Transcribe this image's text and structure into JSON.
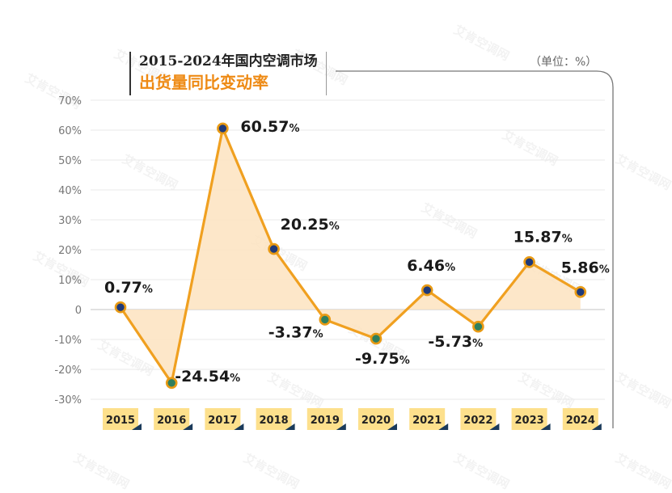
{
  "header": {
    "title_line1": "2015-2024年国内空调市场",
    "title_line2": "出货量同比变动率",
    "unit": "（单位：%）"
  },
  "watermark": "艾肯空调网",
  "colors": {
    "line": "#f0a020",
    "area": "#fde3bf",
    "positive_marker": "#1f3a7a",
    "negative_marker": "#2f7f5e",
    "marker_ring": "#e89a14",
    "title_accent": "#ee8a14",
    "year_tag": "#fde08c",
    "grid": "#e9e9e9"
  },
  "chart_data": {
    "type": "area",
    "title": "2015-2024年国内空调市场出货量同比变动率",
    "xlabel": "",
    "ylabel": "",
    "unit": "%",
    "ylim": [
      -30,
      70
    ],
    "yticks": [
      70,
      60,
      50,
      40,
      30,
      20,
      10,
      0,
      -10,
      -20,
      -30
    ],
    "ytick_labels": [
      "70%",
      "60%",
      "50%",
      "40%",
      "30%",
      "20%",
      "10%",
      "0",
      "-10%",
      "-20%",
      "-30%"
    ],
    "categories": [
      "2015",
      "2016",
      "2017",
      "2018",
      "2019",
      "2020",
      "2021",
      "2022",
      "2023",
      "2024"
    ],
    "values": [
      0.77,
      -24.54,
      60.57,
      20.25,
      -3.37,
      -9.75,
      6.46,
      -5.73,
      15.87,
      5.86
    ],
    "data_labels": [
      "0.77",
      "-24.54",
      "60.57",
      "20.25",
      "-3.37",
      "-9.75",
      "6.46",
      "-5.73",
      "15.87",
      "5.86"
    ],
    "label_suffix": "%",
    "grid": true,
    "legend": "none"
  }
}
